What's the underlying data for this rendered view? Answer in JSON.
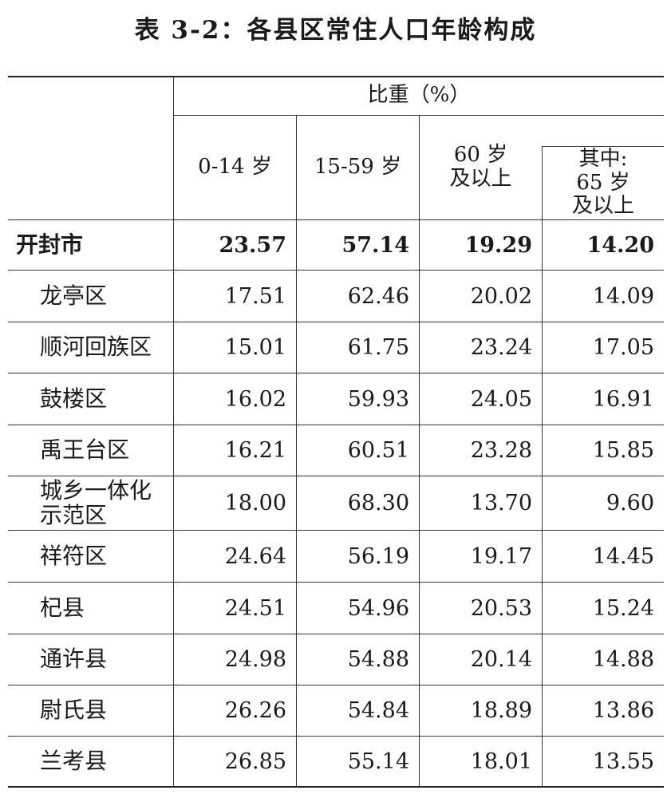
{
  "title": "表 3-2：各县区常住人口年龄构成",
  "table": {
    "group_header": "比重（%）",
    "columns": {
      "age_0_14": "0-14 岁",
      "age_15_59": "15-59 岁",
      "age_60_plus_line1": "60 岁",
      "age_60_plus_line2": "及以上",
      "age_65_plus_line1": "其中:",
      "age_65_plus_line2": "65 岁",
      "age_65_plus_line3": "及以上"
    },
    "rows": [
      {
        "name": "开封市",
        "v0_14": "23.57",
        "v15_59": "57.14",
        "v60": "19.29",
        "v65": "14.20"
      },
      {
        "name": "龙亭区",
        "v0_14": "17.51",
        "v15_59": "62.46",
        "v60": "20.02",
        "v65": "14.09"
      },
      {
        "name": "顺河回族区",
        "v0_14": "15.01",
        "v15_59": "61.75",
        "v60": "23.24",
        "v65": "17.05"
      },
      {
        "name": "鼓楼区",
        "v0_14": "16.02",
        "v15_59": "59.93",
        "v60": "24.05",
        "v65": "16.91"
      },
      {
        "name": "禹王台区",
        "v0_14": "16.21",
        "v15_59": "60.51",
        "v60": "23.28",
        "v65": "15.85"
      },
      {
        "name": "城乡一体化\n示范区",
        "v0_14": "18.00",
        "v15_59": "68.30",
        "v60": "13.70",
        "v65": "9.60"
      },
      {
        "name": "祥符区",
        "v0_14": "24.64",
        "v15_59": "56.19",
        "v60": "19.17",
        "v65": "14.45"
      },
      {
        "name": "杞县",
        "v0_14": "24.51",
        "v15_59": "54.96",
        "v60": "20.53",
        "v65": "15.24"
      },
      {
        "name": "通许县",
        "v0_14": "24.98",
        "v15_59": "54.88",
        "v60": "20.14",
        "v65": "14.88"
      },
      {
        "name": "尉氏县",
        "v0_14": "26.26",
        "v15_59": "54.84",
        "v60": "18.89",
        "v65": "13.86"
      },
      {
        "name": "兰考县",
        "v0_14": "26.85",
        "v15_59": "55.14",
        "v60": "18.01",
        "v65": "13.55"
      }
    ]
  }
}
